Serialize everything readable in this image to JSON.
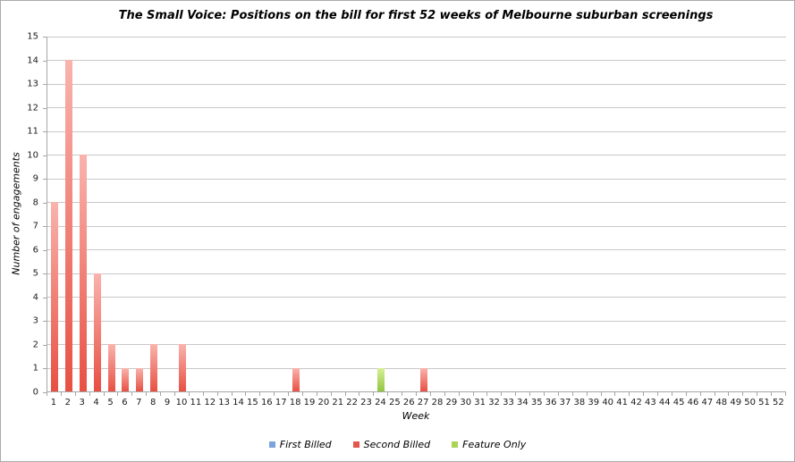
{
  "chart_data": {
    "type": "bar",
    "title": "The Small Voice: Positions on the bill for first 52 weeks of Melbourne suburban screenings",
    "xlabel": "Week",
    "ylabel": "Number of engagements",
    "ylim": [
      0,
      15
    ],
    "ytick_step": 1,
    "grid": true,
    "legend_position": "bottom",
    "categories": [
      1,
      2,
      3,
      4,
      5,
      6,
      7,
      8,
      9,
      10,
      11,
      12,
      13,
      14,
      15,
      16,
      17,
      18,
      19,
      20,
      21,
      22,
      23,
      24,
      25,
      26,
      27,
      28,
      29,
      30,
      31,
      32,
      33,
      34,
      35,
      36,
      37,
      38,
      39,
      40,
      41,
      42,
      43,
      44,
      45,
      46,
      47,
      48,
      49,
      50,
      51,
      52
    ],
    "series": [
      {
        "name": "First Billed",
        "legend_color": "#7ba4dc",
        "bar_top": "#b3cdee",
        "bar_bottom": "#5d90d5",
        "values": [
          0,
          0,
          0,
          0,
          0,
          0,
          0,
          0,
          0,
          0,
          0,
          0,
          0,
          0,
          0,
          0,
          0,
          0,
          0,
          0,
          0,
          0,
          0,
          0,
          0,
          0,
          0,
          0,
          0,
          0,
          0,
          0,
          0,
          0,
          0,
          0,
          0,
          0,
          0,
          0,
          0,
          0,
          0,
          0,
          0,
          0,
          0,
          0,
          0,
          0,
          0,
          0
        ]
      },
      {
        "name": "Second Billed",
        "legend_color": "#e4574b",
        "bar_top": "#f9b3ad",
        "bar_bottom": "#e85043",
        "values": [
          8,
          14,
          10,
          5,
          2,
          1,
          1,
          2,
          0,
          2,
          0,
          0,
          0,
          0,
          0,
          0,
          0,
          1,
          0,
          0,
          0,
          0,
          0,
          0,
          0,
          0,
          1,
          0,
          0,
          0,
          0,
          0,
          0,
          0,
          0,
          0,
          0,
          0,
          0,
          0,
          0,
          0,
          0,
          0,
          0,
          0,
          0,
          0,
          0,
          0,
          0,
          0
        ]
      },
      {
        "name": "Feature Only",
        "legend_color": "#a9d455",
        "bar_top": "#d7ef99",
        "bar_bottom": "#92c63f",
        "values": [
          0,
          0,
          0,
          0,
          0,
          0,
          0,
          0,
          0,
          0,
          0,
          0,
          0,
          0,
          0,
          0,
          0,
          0,
          0,
          0,
          0,
          0,
          0,
          1,
          0,
          0,
          0,
          0,
          0,
          0,
          0,
          0,
          0,
          0,
          0,
          0,
          0,
          0,
          0,
          0,
          0,
          0,
          0,
          0,
          0,
          0,
          0,
          0,
          0,
          0,
          0,
          0
        ]
      }
    ],
    "colors": {
      "gridline": "#c8c8c8",
      "axis": "#a6a6a6",
      "text": "#1a1a1a"
    }
  }
}
